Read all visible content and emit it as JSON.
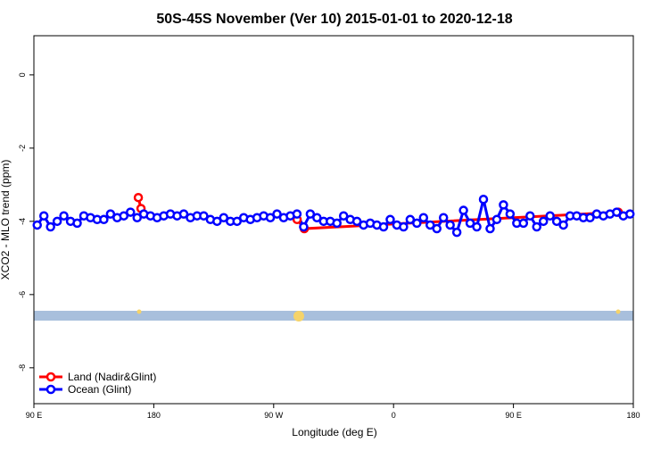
{
  "chart_data": {
    "type": "line",
    "title": "50S-45S November (Ver 10)   2015-01-01 to 2020-12-18",
    "x_label": "Longitude (deg E)",
    "y_label": "XCO2 - MLO trend (ppm)",
    "xlim": [
      90,
      540
    ],
    "ylim": [
      -8.98,
      1.07
    ],
    "xticks": [
      {
        "value": 90,
        "label": "90 E"
      },
      180,
      {
        "value": 270,
        "label": "90 W"
      },
      {
        "value": 360,
        "label": "0"
      },
      {
        "value": 450,
        "label": "90 E"
      },
      {
        "value": 540,
        "label": "180"
      }
    ],
    "yticks": [
      0,
      -2,
      -4,
      -6,
      -8
    ],
    "legend": "bottom-left",
    "series": [
      {
        "name": "Land (Nadir&Glint)",
        "color": "#ff0000",
        "x": [
          168.4,
          170.4,
          284.9,
          287.6,
          293,
          528.7,
          530.7
        ],
        "values": [
          -3.35,
          -3.65,
          null,
          -3.95,
          -4.2,
          -3.75,
          null
        ]
      },
      {
        "name": "Ocean (Glint)",
        "color": "#0000ff",
        "x": [
          92.5,
          97.5,
          102.5,
          107.5,
          112.5,
          117.5,
          122.5,
          127.5,
          132.5,
          137.5,
          142.5,
          147.5,
          152.5,
          157.5,
          162.5,
          167.5,
          172.5,
          177.5,
          182.5,
          187.5,
          192.5,
          197.5,
          202.5,
          207.5,
          212.5,
          217.5,
          222.5,
          227.5,
          232.5,
          237.5,
          242.5,
          247.5,
          252.5,
          257.5,
          262.5,
          267.5,
          272.5,
          277.5,
          282.5,
          287.5,
          292.5,
          297.5,
          302.5,
          307.5,
          312.5,
          317.5,
          322.5,
          327.5,
          332.5,
          337.5,
          342.5,
          347.5,
          352.5,
          357.5,
          362.5,
          367.5,
          372.5,
          377.5,
          382.5,
          387.5,
          392.5,
          397.5,
          402.5,
          407.5,
          412.5,
          417.5,
          422.5,
          427.5,
          432.5,
          437.5,
          442.5,
          447.5,
          452.5,
          457.5,
          462.5,
          467.5,
          472.5,
          477.5,
          482.5,
          487.5,
          492.5,
          497.5,
          502.5,
          507.5,
          512.5,
          517.5,
          522.5,
          527.5,
          532.5,
          537.5
        ],
        "values": [
          -4.1,
          -3.85,
          -4.15,
          -4.0,
          -3.85,
          -4.0,
          -4.05,
          -3.85,
          -3.9,
          -3.95,
          -3.95,
          -3.8,
          -3.9,
          -3.85,
          -3.75,
          -3.9,
          -3.8,
          -3.85,
          -3.9,
          -3.85,
          -3.8,
          -3.85,
          -3.8,
          -3.9,
          -3.85,
          -3.85,
          -3.95,
          -4.0,
          -3.9,
          -4.0,
          -4.0,
          -3.9,
          -3.95,
          -3.9,
          -3.85,
          -3.9,
          -3.8,
          -3.9,
          -3.85,
          -3.8,
          -4.15,
          -3.8,
          -3.9,
          -4.0,
          -4.0,
          -4.05,
          -3.85,
          -3.95,
          -4.0,
          -4.1,
          -4.05,
          -4.1,
          -4.15,
          -3.95,
          -4.1,
          -4.15,
          -3.95,
          -4.05,
          -3.9,
          -4.1,
          -4.2,
          -3.9,
          -4.1,
          -4.3,
          -3.7,
          -4.05,
          -4.15,
          -3.4,
          -4.2,
          -3.95,
          -3.55,
          -3.8,
          -4.05,
          -4.05,
          -3.85,
          -4.15,
          -4.0,
          -3.85,
          -4.0,
          -4.1,
          -3.85,
          -3.85,
          -3.9,
          -3.9,
          -3.8,
          -3.85,
          -3.8,
          -3.75,
          -3.85,
          -3.8
        ]
      }
    ]
  }
}
